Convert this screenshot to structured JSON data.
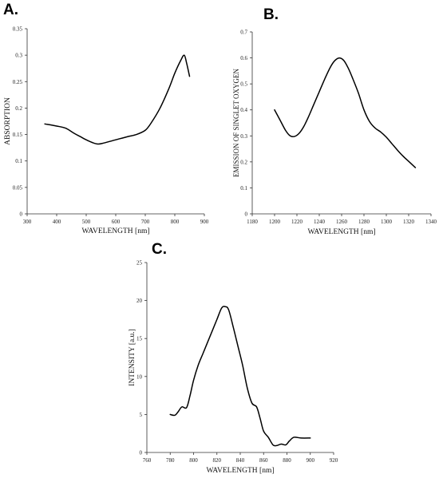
{
  "chart_data": [
    {
      "type": "line",
      "panel_label": "A.",
      "title": "",
      "xlabel": "WAVELENGTH [nm]",
      "ylabel": "ABSORPTION",
      "xlim": [
        300,
        900
      ],
      "ylim": [
        0,
        0.35
      ],
      "xticks": [
        300,
        400,
        500,
        600,
        700,
        800,
        900
      ],
      "yticks": [
        0,
        0.05,
        0.1,
        0.15,
        0.2,
        0.25,
        0.3,
        0.35
      ],
      "xtick_labels": [
        "300",
        "400",
        "500",
        "600",
        "700",
        "800",
        "900"
      ],
      "ytick_labels": [
        "0",
        "0.05",
        "0.1",
        "0.15",
        "0.2",
        "0.25",
        "0.3",
        "0.35"
      ],
      "grid": false,
      "series": [
        {
          "x": [
            360,
            400,
            430,
            460,
            480,
            500,
            520,
            540,
            560,
            600,
            640,
            670,
            700,
            720,
            750,
            780,
            800,
            820,
            832,
            840,
            850
          ],
          "y": [
            0.17,
            0.166,
            0.162,
            0.152,
            0.146,
            0.14,
            0.135,
            0.132,
            0.134,
            0.14,
            0.146,
            0.15,
            0.158,
            0.172,
            0.2,
            0.237,
            0.266,
            0.29,
            0.3,
            0.285,
            0.26
          ]
        }
      ]
    },
    {
      "type": "line",
      "panel_label": "B.",
      "title": "",
      "xlabel": "WAVELENGTH [nm]",
      "ylabel": "EMISSION OF SINGLET OXYGEN",
      "xlim": [
        1180,
        1340
      ],
      "ylim": [
        0,
        0.7
      ],
      "xticks": [
        1180,
        1200,
        1220,
        1240,
        1260,
        1280,
        1300,
        1320,
        1340
      ],
      "yticks": [
        0,
        0.1,
        0.2,
        0.3,
        0.4,
        0.5,
        0.6,
        0.7
      ],
      "xtick_labels": [
        "1180",
        "1200",
        "1220",
        "1240",
        "1260",
        "1280",
        "1300",
        "1320",
        "1340"
      ],
      "ytick_labels": [
        "0",
        "0.1",
        "0.2",
        "0.3",
        "0.4",
        "0.5",
        "0.6",
        "0.7"
      ],
      "grid": false,
      "series": [
        {
          "x": [
            1200,
            1205,
            1210,
            1214,
            1218,
            1222,
            1226,
            1230,
            1235,
            1240,
            1245,
            1250,
            1254,
            1258,
            1262,
            1266,
            1270,
            1275,
            1280,
            1285,
            1290,
            1295,
            1300,
            1305,
            1310,
            1315,
            1320,
            1326
          ],
          "y": [
            0.4,
            0.36,
            0.32,
            0.3,
            0.298,
            0.31,
            0.335,
            0.37,
            0.42,
            0.47,
            0.52,
            0.565,
            0.59,
            0.6,
            0.59,
            0.56,
            0.52,
            0.465,
            0.4,
            0.355,
            0.33,
            0.315,
            0.295,
            0.27,
            0.245,
            0.222,
            0.202,
            0.178
          ]
        }
      ]
    },
    {
      "type": "line",
      "panel_label": "C.",
      "title": "",
      "xlabel": "WAVELENGTH [nm]",
      "ylabel": "INTENSITY [a.u.]",
      "xlim": [
        760,
        920
      ],
      "ylim": [
        0,
        25
      ],
      "xticks": [
        760,
        780,
        800,
        820,
        840,
        860,
        880,
        900,
        920
      ],
      "yticks": [
        0,
        5,
        10,
        15,
        20,
        25
      ],
      "xtick_labels": [
        "760",
        "780",
        "800",
        "820",
        "840",
        "860",
        "880",
        "900",
        "920"
      ],
      "ytick_labels": [
        "0",
        "5",
        "10",
        "15",
        "20",
        "25"
      ],
      "grid": false,
      "series": [
        {
          "x": [
            780,
            784,
            787,
            790,
            794,
            797,
            800,
            804,
            808,
            812,
            816,
            820,
            824,
            827,
            830,
            834,
            838,
            842,
            846,
            850,
            854,
            857,
            860,
            864,
            868,
            871,
            875,
            879,
            882,
            886,
            892,
            900
          ],
          "y": [
            5.0,
            4.9,
            5.4,
            6.0,
            5.9,
            7.5,
            9.5,
            11.5,
            13.0,
            14.5,
            16.0,
            17.5,
            19.0,
            19.2,
            18.8,
            16.5,
            14.0,
            11.5,
            8.5,
            6.5,
            6.0,
            4.5,
            2.8,
            2.0,
            1.0,
            0.9,
            1.1,
            1.0,
            1.5,
            2.0,
            1.9,
            1.9
          ]
        }
      ]
    }
  ]
}
